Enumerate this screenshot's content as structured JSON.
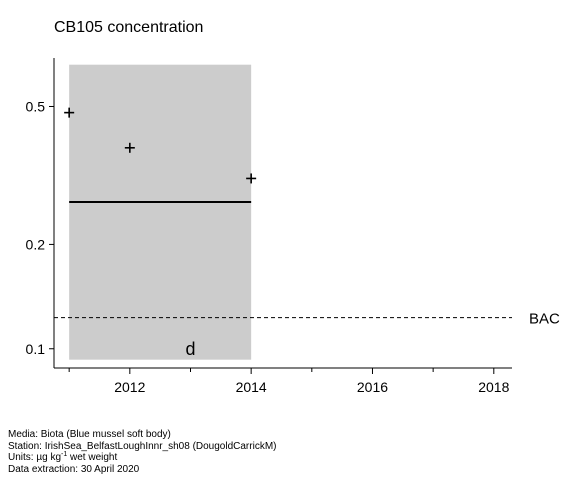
{
  "chart_data": {
    "type": "scatter",
    "title": "CB105 concentration",
    "xlabel": "",
    "ylabel": "",
    "y_scale": "log",
    "xlim": [
      2010.75,
      2018.3
    ],
    "ylim": [
      0.088,
      0.69
    ],
    "x_ticks": [
      2012,
      2014,
      2016,
      2018
    ],
    "x_minor_ticks": [
      2011,
      2013,
      2015,
      2017
    ],
    "y_ticks": [
      0.1,
      0.2,
      0.5
    ],
    "points": [
      {
        "x": 2011,
        "y": 0.48,
        "marker": "+"
      },
      {
        "x": 2012,
        "y": 0.38,
        "marker": "+"
      },
      {
        "x": 2014,
        "y": 0.31,
        "marker": "+"
      }
    ],
    "assessment_band": {
      "x": [
        2011,
        2014
      ],
      "y": [
        0.093,
        0.66
      ],
      "color": "#cccccc"
    },
    "trend_line": {
      "x": [
        2011,
        2014
      ],
      "y": [
        0.265,
        0.265
      ]
    },
    "reference_lines": [
      {
        "label": "BAC",
        "y": 0.123,
        "style": "dashed"
      }
    ],
    "annotations": [
      {
        "text": "d",
        "x": 2013,
        "y": 0.1
      }
    ]
  },
  "footer": {
    "media": "Media: Biota (Blue mussel soft body)",
    "station": "Station: IrishSea_BelfastLoughInnr_sh08 (DougoldCarrickM)",
    "units_prefix": "Units: µg kg",
    "units_sup": "-1",
    "units_suffix": " wet weight",
    "extraction": "Data extraction: 30 April 2020"
  }
}
